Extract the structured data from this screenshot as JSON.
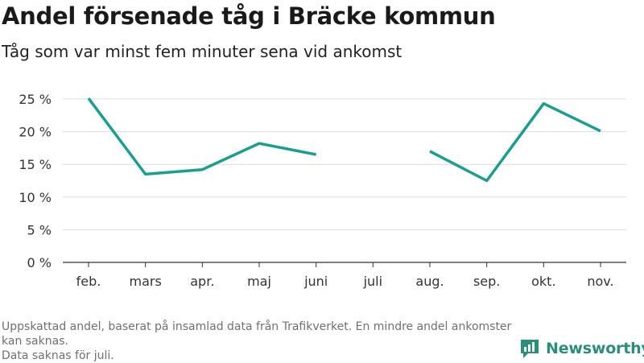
{
  "chart_data": {
    "type": "line",
    "title": "Andel försenade tåg i Bräcke kommun",
    "subtitle": "Tåg som var minst fem minuter sena vid ankomst",
    "categories": [
      "feb.",
      "mars",
      "apr.",
      "maj",
      "juni",
      "juli",
      "aug.",
      "sep.",
      "okt.",
      "nov."
    ],
    "series": [
      {
        "values": [
          25.1,
          13.5,
          14.2,
          18.2,
          16.5,
          null,
          17.0,
          12.5,
          24.3,
          20.1
        ]
      }
    ],
    "ylim": [
      0,
      25
    ],
    "yticks": [
      0,
      5,
      10,
      15,
      20,
      25
    ],
    "ytick_labels": [
      "0 %",
      "5 %",
      "10 %",
      "15 %",
      "20 %",
      "25 %"
    ],
    "xlabel": "",
    "ylabel": "",
    "grid": true,
    "line_color": "#1a9e8f"
  },
  "footnote": {
    "lines": [
      "Uppskattad andel, baserat på insamlad data från Trafikverket. En mindre andel ankomster kan saknas.",
      "Data saknas för juli."
    ]
  },
  "brand": {
    "name": "Newsworthy",
    "icon": "newsworthy-logo-icon",
    "color": "#2a8f7a"
  }
}
